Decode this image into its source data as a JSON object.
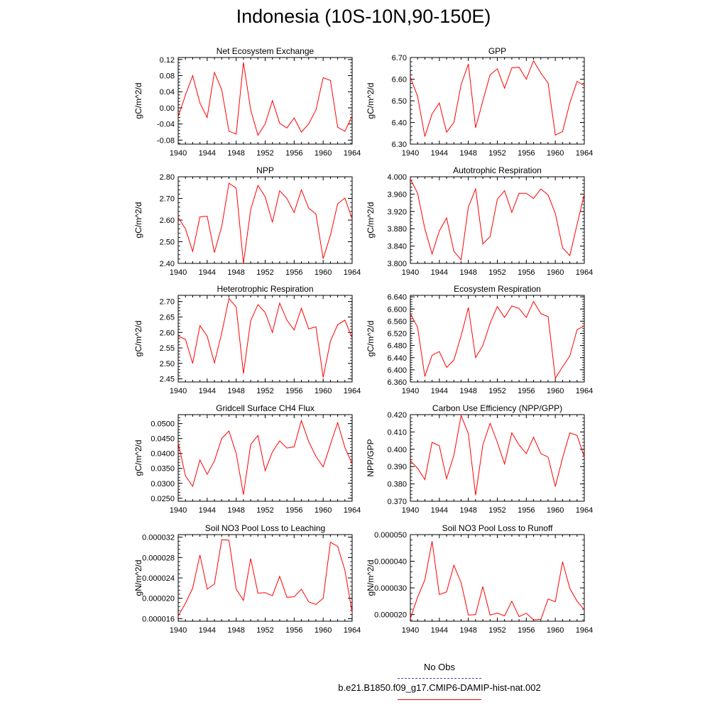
{
  "title": "Indonesia (10S-10N,90-150E)",
  "line_color": "#ff0000",
  "obs_color": "#4040c0",
  "legend": {
    "obs_label": "No Obs",
    "model_label": "b.e21.B1850.f09_g17.CMIP6-DAMIP-hist-nat.002"
  },
  "chart_data": [
    {
      "type": "line",
      "title": "Net Ecosystem Exchange",
      "ylabel": "gC/m^2/d",
      "x": [
        1940,
        1941,
        1942,
        1943,
        1944,
        1945,
        1946,
        1947,
        1948,
        1949,
        1950,
        1951,
        1952,
        1953,
        1954,
        1955,
        1956,
        1957,
        1958,
        1959,
        1960,
        1961,
        1962,
        1963,
        1964
      ],
      "values": [
        -0.022,
        0.032,
        0.08,
        0.012,
        -0.024,
        0.088,
        0.045,
        -0.058,
        -0.065,
        0.113,
        -0.005,
        -0.068,
        -0.04,
        0.018,
        -0.038,
        -0.05,
        -0.025,
        -0.06,
        -0.04,
        -0.005,
        0.075,
        0.068,
        -0.048,
        -0.058,
        -0.02
      ],
      "ylim": [
        -0.09,
        0.125
      ],
      "yticks": [
        -0.08,
        -0.04,
        0.0,
        0.04,
        0.08,
        0.12
      ],
      "ytick_labels": [
        "-0.08",
        "-0.04",
        "0.00",
        "0.04",
        "0.08",
        "0.12"
      ],
      "xticks": [
        1940,
        1944,
        1948,
        1952,
        1956,
        1960,
        1964
      ],
      "xlim": [
        1940,
        1964
      ]
    },
    {
      "type": "line",
      "title": "GPP",
      "ylabel": "gC/m^2/d",
      "x": [
        1940,
        1941,
        1942,
        1943,
        1944,
        1945,
        1946,
        1947,
        1948,
        1949,
        1950,
        1951,
        1952,
        1953,
        1954,
        1955,
        1956,
        1957,
        1958,
        1959,
        1960,
        1961,
        1962,
        1963,
        1964
      ],
      "values": [
        6.61,
        6.52,
        6.335,
        6.44,
        6.49,
        6.355,
        6.4,
        6.575,
        6.67,
        6.375,
        6.5,
        6.62,
        6.648,
        6.558,
        6.652,
        6.655,
        6.6,
        6.685,
        6.628,
        6.582,
        6.342,
        6.358,
        6.49,
        6.59,
        6.57
      ],
      "ylim": [
        6.3,
        6.7
      ],
      "yticks": [
        6.3,
        6.4,
        6.5,
        6.6,
        6.7
      ],
      "ytick_labels": [
        "6.30",
        "6.40",
        "6.50",
        "6.60",
        "6.70"
      ],
      "xticks": [
        1940,
        1944,
        1948,
        1952,
        1956,
        1960,
        1964
      ],
      "xlim": [
        1940,
        1964
      ]
    },
    {
      "type": "line",
      "title": "NPP",
      "ylabel": "gC/m^2/d",
      "x": [
        1940,
        1941,
        1942,
        1943,
        1944,
        1945,
        1946,
        1947,
        1948,
        1949,
        1950,
        1951,
        1952,
        1953,
        1954,
        1955,
        1956,
        1957,
        1958,
        1959,
        1960,
        1961,
        1962,
        1963,
        1964
      ],
      "values": [
        2.612,
        2.56,
        2.455,
        2.615,
        2.618,
        2.45,
        2.57,
        2.77,
        2.748,
        2.4,
        2.648,
        2.76,
        2.708,
        2.59,
        2.735,
        2.7,
        2.635,
        2.74,
        2.655,
        2.628,
        2.422,
        2.53,
        2.675,
        2.702,
        2.605
      ],
      "ylim": [
        2.4,
        2.8
      ],
      "yticks": [
        2.4,
        2.5,
        2.6,
        2.7,
        2.8
      ],
      "ytick_labels": [
        "2.40",
        "2.50",
        "2.60",
        "2.70",
        "2.80"
      ],
      "xticks": [
        1940,
        1944,
        1948,
        1952,
        1956,
        1960,
        1964
      ],
      "xlim": [
        1940,
        1964
      ]
    },
    {
      "type": "line",
      "title": "Autotrophic Respiration",
      "ylabel": "gC/m^2/d",
      "x": [
        1940,
        1941,
        1942,
        1943,
        1944,
        1945,
        1946,
        1947,
        1948,
        1949,
        1950,
        1951,
        1952,
        1953,
        1954,
        1955,
        1956,
        1957,
        1958,
        1959,
        1960,
        1961,
        1962,
        1963,
        1964
      ],
      "values": [
        3.995,
        3.962,
        3.88,
        3.822,
        3.875,
        3.905,
        3.828,
        3.808,
        3.93,
        3.972,
        3.845,
        3.862,
        3.948,
        3.968,
        3.918,
        3.962,
        3.962,
        3.95,
        3.972,
        3.958,
        3.915,
        3.836,
        3.818,
        3.89,
        3.96
      ],
      "ylim": [
        3.8,
        4.0
      ],
      "yticks": [
        3.8,
        3.84,
        3.88,
        3.92,
        3.96,
        4.0
      ],
      "ytick_labels": [
        "3.800",
        "3.840",
        "3.880",
        "3.920",
        "3.960",
        "4.000"
      ],
      "xticks": [
        1940,
        1944,
        1948,
        1952,
        1956,
        1960,
        1964
      ],
      "xlim": [
        1940,
        1964
      ]
    },
    {
      "type": "line",
      "title": "Heterotrophic Respiration",
      "ylabel": "gC/m^2/d",
      "x": [
        1940,
        1941,
        1942,
        1943,
        1944,
        1945,
        1946,
        1947,
        1948,
        1949,
        1950,
        1951,
        1952,
        1953,
        1954,
        1955,
        1956,
        1957,
        1958,
        1959,
        1960,
        1961,
        1962,
        1963,
        1964
      ],
      "values": [
        2.588,
        2.578,
        2.5,
        2.622,
        2.588,
        2.502,
        2.598,
        2.71,
        2.682,
        2.467,
        2.638,
        2.69,
        2.665,
        2.6,
        2.695,
        2.64,
        2.608,
        2.678,
        2.612,
        2.618,
        2.455,
        2.572,
        2.625,
        2.64,
        2.582
      ],
      "ylim": [
        2.44,
        2.72
      ],
      "yticks": [
        2.45,
        2.5,
        2.55,
        2.6,
        2.65,
        2.7
      ],
      "ytick_labels": [
        "2.45",
        "2.50",
        "2.55",
        "2.60",
        "2.65",
        "2.70"
      ],
      "xticks": [
        1940,
        1944,
        1948,
        1952,
        1956,
        1960,
        1964
      ],
      "xlim": [
        1940,
        1964
      ]
    },
    {
      "type": "line",
      "title": "Ecosystem Respiration",
      "ylabel": "gC/m^2/d",
      "x": [
        1940,
        1941,
        1942,
        1943,
        1944,
        1945,
        1946,
        1947,
        1948,
        1949,
        1950,
        1951,
        1952,
        1953,
        1954,
        1955,
        1956,
        1957,
        1958,
        1959,
        1960,
        1961,
        1962,
        1963,
        1964
      ],
      "values": [
        6.585,
        6.54,
        6.378,
        6.448,
        6.46,
        6.408,
        6.432,
        6.512,
        6.605,
        6.44,
        6.48,
        6.553,
        6.608,
        6.572,
        6.61,
        6.602,
        6.572,
        6.625,
        6.585,
        6.575,
        6.372,
        6.41,
        6.445,
        6.532,
        6.545
      ],
      "ylim": [
        6.36,
        6.645
      ],
      "yticks": [
        6.36,
        6.4,
        6.44,
        6.48,
        6.52,
        6.56,
        6.6,
        6.64
      ],
      "ytick_labels": [
        "6.360",
        "6.400",
        "6.440",
        "6.480",
        "6.520",
        "6.560",
        "6.600",
        "6.640"
      ],
      "xticks": [
        1940,
        1944,
        1948,
        1952,
        1956,
        1960,
        1964
      ],
      "xlim": [
        1940,
        1964
      ]
    },
    {
      "type": "line",
      "title": "Gridcell Surface CH4 Flux",
      "ylabel": "gC/m^2/d",
      "x": [
        1940,
        1941,
        1942,
        1943,
        1944,
        1945,
        1946,
        1947,
        1948,
        1949,
        1950,
        1951,
        1952,
        1953,
        1954,
        1955,
        1956,
        1957,
        1958,
        1959,
        1960,
        1961,
        1962,
        1963,
        1964
      ],
      "values": [
        0.0435,
        0.0325,
        0.029,
        0.0378,
        0.033,
        0.0375,
        0.045,
        0.0475,
        0.04,
        0.0262,
        0.043,
        0.046,
        0.0342,
        0.0405,
        0.0442,
        0.0418,
        0.0422,
        0.051,
        0.044,
        0.039,
        0.0355,
        0.043,
        0.0503,
        0.042,
        0.0365
      ],
      "ylim": [
        0.024,
        0.053
      ],
      "yticks": [
        0.025,
        0.03,
        0.035,
        0.04,
        0.045,
        0.05
      ],
      "ytick_labels": [
        "0.0250",
        "0.0300",
        "0.0350",
        "0.0400",
        "0.0450",
        "0.0500"
      ],
      "xticks": [
        1940,
        1944,
        1948,
        1952,
        1956,
        1960,
        1964
      ],
      "xlim": [
        1940,
        1964
      ]
    },
    {
      "type": "line",
      "title": "Carbon Use Efficiency (NPP/GPP)",
      "ylabel": "NPP/GPP",
      "x": [
        1940,
        1941,
        1942,
        1943,
        1944,
        1945,
        1946,
        1947,
        1948,
        1949,
        1950,
        1951,
        1952,
        1953,
        1954,
        1955,
        1956,
        1957,
        1958,
        1959,
        1960,
        1961,
        1962,
        1963,
        1964
      ],
      "values": [
        0.3935,
        0.389,
        0.3825,
        0.404,
        0.402,
        0.383,
        0.3965,
        0.4195,
        0.409,
        0.3735,
        0.4025,
        0.415,
        0.404,
        0.3915,
        0.4095,
        0.4025,
        0.3975,
        0.407,
        0.3975,
        0.3955,
        0.3785,
        0.395,
        0.4095,
        0.408,
        0.3955
      ],
      "ylim": [
        0.37,
        0.42
      ],
      "yticks": [
        0.37,
        0.38,
        0.39,
        0.4,
        0.41,
        0.42
      ],
      "ytick_labels": [
        "0.370",
        "0.380",
        "0.390",
        "0.400",
        "0.410",
        "0.420"
      ],
      "xticks": [
        1940,
        1944,
        1948,
        1952,
        1956,
        1960,
        1964
      ],
      "xlim": [
        1940,
        1964
      ]
    },
    {
      "type": "line",
      "title": "Soil NO3 Pool Loss to Leaching",
      "ylabel": "gN/m^2/d",
      "x": [
        1940,
        1941,
        1942,
        1943,
        1944,
        1945,
        1946,
        1947,
        1948,
        1949,
        1950,
        1951,
        1952,
        1953,
        1954,
        1955,
        1956,
        1957,
        1958,
        1959,
        1960,
        1961,
        1962,
        1963,
        1964
      ],
      "values": [
        1.65e-05,
        1.9e-05,
        2.2e-05,
        2.85e-05,
        2.18e-05,
        2.28e-05,
        3.15e-05,
        3.14e-05,
        2.18e-05,
        1.96e-05,
        2.78e-05,
        2.1e-05,
        2.11e-05,
        2.05e-05,
        2.43e-05,
        2.02e-05,
        2.03e-05,
        2.18e-05,
        1.93e-05,
        1.88e-05,
        2e-05,
        3.1e-05,
        3.02e-05,
        2.55e-05,
        1.72e-05
      ],
      "ylim": [
        1.55e-05,
        3.25e-05
      ],
      "yticks": [
        1.6e-05,
        2e-05,
        2.4e-05,
        2.8e-05,
        3.2e-05
      ],
      "ytick_labels": [
        "0.000016",
        "0.000020",
        "0.000024",
        "0.000028",
        "0.000032"
      ],
      "xticks": [
        1940,
        1944,
        1948,
        1952,
        1956,
        1960,
        1964
      ],
      "xlim": [
        1940,
        1964
      ]
    },
    {
      "type": "line",
      "title": "Soil NO3 Pool Loss to Runoff",
      "ylabel": "gN/m^2/d",
      "x": [
        1940,
        1941,
        1942,
        1943,
        1944,
        1945,
        1946,
        1947,
        1948,
        1949,
        1950,
        1951,
        1952,
        1953,
        1954,
        1955,
        1956,
        1957,
        1958,
        1959,
        1960,
        1961,
        1962,
        1963,
        1964
      ],
      "values": [
        1.85e-05,
        2.65e-05,
        3.3e-05,
        4.75e-05,
        2.75e-05,
        2.85e-05,
        3.85e-05,
        3.2e-05,
        1.98e-05,
        2e-05,
        3.05e-05,
        1.98e-05,
        2.05e-05,
        1.95e-05,
        2.5e-05,
        1.92e-05,
        2.05e-05,
        1.8e-05,
        1.82e-05,
        2.58e-05,
        2.48e-05,
        3.98e-05,
        2.98e-05,
        2.5e-05,
        2.18e-05
      ],
      "ylim": [
        1.75e-05,
        5e-05
      ],
      "yticks": [
        2e-05,
        3e-05,
        4e-05,
        5e-05
      ],
      "ytick_labels": [
        "0.000020",
        "0.000030",
        "0.000040",
        "0.000050"
      ],
      "xticks": [
        1940,
        1944,
        1948,
        1952,
        1956,
        1960,
        1964
      ],
      "xlim": [
        1940,
        1964
      ]
    }
  ]
}
